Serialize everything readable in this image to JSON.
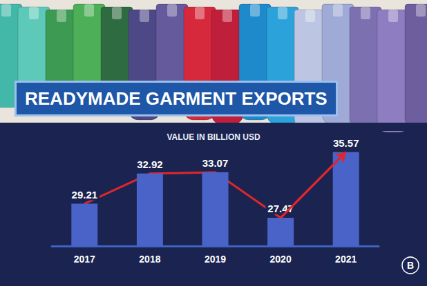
{
  "chart_data": {
    "type": "bar",
    "title": "READYMADE GARMENT EXPORTS",
    "subtitle": "VALUE IN BILLION USD",
    "categories": [
      "2017",
      "2018",
      "2019",
      "2020",
      "2021"
    ],
    "series": [
      {
        "type": "bar",
        "color": "#4a63c8",
        "values": [
          29.21,
          32.92,
          33.07,
          27.47,
          35.57
        ],
        "data_labels": true
      },
      {
        "type": "line",
        "color": "#e0262b",
        "marker": "arrow",
        "values": [
          29.21,
          32.92,
          33.07,
          27.47,
          35.57
        ]
      }
    ],
    "ylim": [
      24,
      38
    ],
    "tick_labels": "x",
    "grid": false,
    "annotations": [
      "B"
    ]
  }
}
